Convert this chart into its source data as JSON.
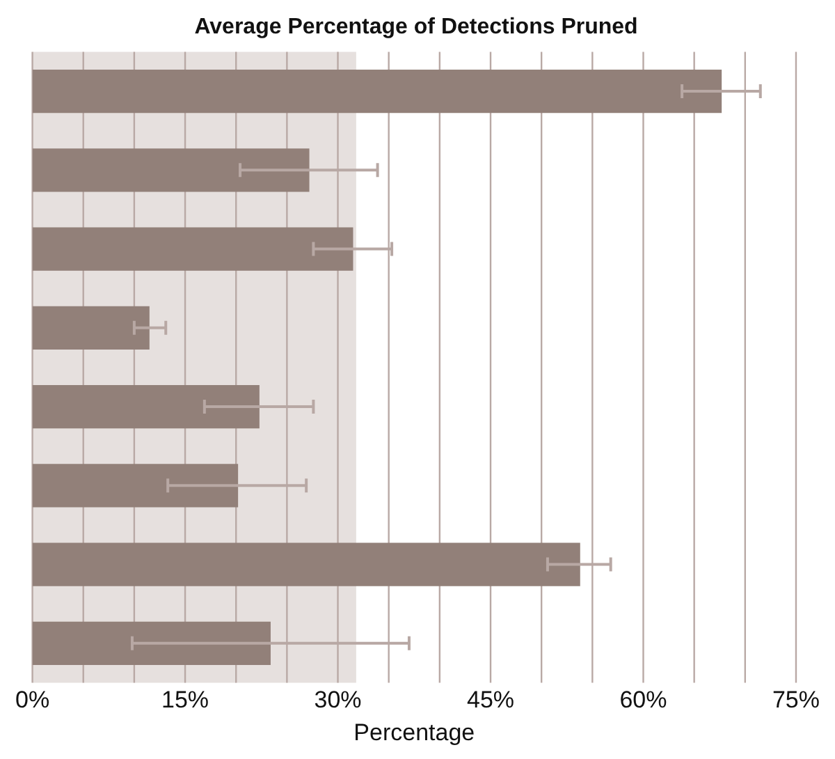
{
  "chart_data": {
    "type": "bar",
    "orientation": "horizontal",
    "title": "Average Percentage of Detections Pruned",
    "xlabel": "Percentage",
    "categories": [
      null,
      null,
      null,
      null,
      null,
      null,
      null,
      null
    ],
    "values": [
      67.7,
      27.2,
      31.5,
      11.5,
      22.3,
      20.2,
      53.8,
      23.4
    ],
    "errors": [
      [
        63.8,
        71.5
      ],
      [
        20.4,
        33.9
      ],
      [
        27.6,
        35.3
      ],
      [
        10.0,
        13.1
      ],
      [
        16.9,
        27.6
      ],
      [
        13.3,
        26.9
      ],
      [
        50.6,
        56.8
      ],
      [
        9.8,
        37.0
      ]
    ],
    "color": "#928079",
    "xlim": [
      0,
      75
    ],
    "xticks": [
      {
        "value": 0,
        "label": "0%"
      },
      {
        "value": 5,
        "label": null
      },
      {
        "value": 10,
        "label": null
      },
      {
        "value": 15,
        "label": "15%"
      },
      {
        "value": 20,
        "label": null
      },
      {
        "value": 25,
        "label": null
      },
      {
        "value": 30,
        "label": "30%"
      },
      {
        "value": 35,
        "label": null
      },
      {
        "value": 40,
        "label": null
      },
      {
        "value": 45,
        "label": "45%"
      },
      {
        "value": 50,
        "label": null
      },
      {
        "value": 55,
        "label": null
      },
      {
        "value": 60,
        "label": "60%"
      },
      {
        "value": 65,
        "label": null
      },
      {
        "value": 70,
        "label": null
      },
      {
        "value": 75,
        "label": "75%"
      }
    ],
    "bands": [
      {
        "axis": "x",
        "from": 0,
        "to": 31.8,
        "color": "#e6e0de"
      }
    ],
    "grid": "x",
    "legend": false
  }
}
